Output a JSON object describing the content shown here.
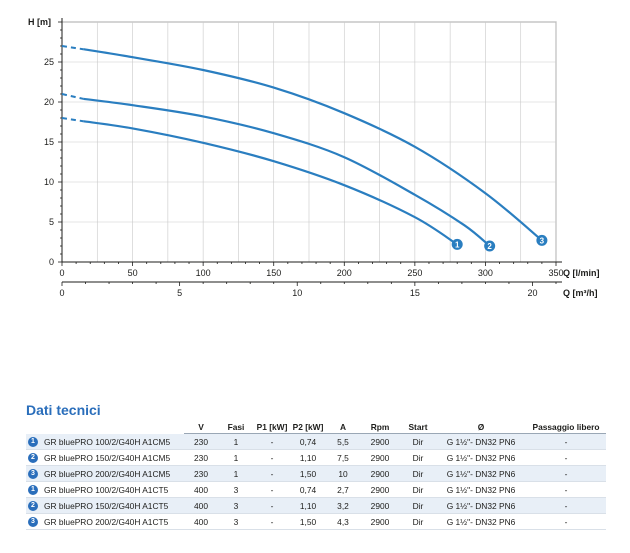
{
  "chart_data": {
    "type": "line",
    "ylabel": "H [m]",
    "xlabel": "Q [l/min]",
    "xlabel_secondary": "Q [m³/h]",
    "xlim": [
      0,
      350
    ],
    "ylim": [
      0,
      30
    ],
    "x_ticks": [
      0,
      50,
      100,
      150,
      200,
      250,
      300,
      350
    ],
    "y_ticks": [
      0,
      5,
      10,
      15,
      20,
      25
    ],
    "x2_ticks": [
      0,
      5,
      10,
      15,
      20
    ],
    "grid": true,
    "color": "#2a7ec0",
    "series": [
      {
        "name": "1",
        "x": [
          0,
          15,
          50,
          100,
          150,
          200,
          250,
          280
        ],
        "y": [
          18,
          17.6,
          16.7,
          14.9,
          12.6,
          9.6,
          5.6,
          2.2
        ]
      },
      {
        "name": "2",
        "x": [
          0,
          15,
          50,
          100,
          150,
          200,
          250,
          285,
          303
        ],
        "y": [
          21,
          20.4,
          19.6,
          18.2,
          16.1,
          13.1,
          8.4,
          4.6,
          2
        ]
      },
      {
        "name": "3",
        "x": [
          0,
          15,
          50,
          100,
          150,
          200,
          250,
          300,
          340
        ],
        "y": [
          27,
          26.6,
          25.6,
          24,
          21.8,
          18.6,
          14.4,
          8.6,
          2.7
        ]
      }
    ]
  },
  "table": {
    "title": "Dati tecnici",
    "headers": [
      "V",
      "Fasi",
      "P1 [kW]",
      "P2 [kW]",
      "A",
      "Rpm",
      "Start",
      "Ø",
      "Passaggio libero"
    ],
    "rows": [
      {
        "badge": "1",
        "model": "GR bluePRO 100/2/G40H A1CM5",
        "v": "230",
        "fasi": "1",
        "p1": "-",
        "p2": "0,74",
        "a": "5,5",
        "rpm": "2900",
        "start": "Dir",
        "conn": "G 1½\"- DN32 PN6",
        "pass": "-"
      },
      {
        "badge": "2",
        "model": "GR bluePRO 150/2/G40H A1CM5",
        "v": "230",
        "fasi": "1",
        "p1": "-",
        "p2": "1,10",
        "a": "7,5",
        "rpm": "2900",
        "start": "Dir",
        "conn": "G 1½\"- DN32 PN6",
        "pass": "-"
      },
      {
        "badge": "3",
        "model": "GR bluePRO 200/2/G40H A1CM5",
        "v": "230",
        "fasi": "1",
        "p1": "-",
        "p2": "1,50",
        "a": "10",
        "rpm": "2900",
        "start": "Dir",
        "conn": "G 1½\"- DN32 PN6",
        "pass": "-"
      },
      {
        "badge": "1",
        "model": "GR bluePRO 100/2/G40H A1CT5",
        "v": "400",
        "fasi": "3",
        "p1": "-",
        "p2": "0,74",
        "a": "2,7",
        "rpm": "2900",
        "start": "Dir",
        "conn": "G 1½\"- DN32 PN6",
        "pass": "-"
      },
      {
        "badge": "2",
        "model": "GR bluePRO 150/2/G40H A1CT5",
        "v": "400",
        "fasi": "3",
        "p1": "-",
        "p2": "1,10",
        "a": "3,2",
        "rpm": "2900",
        "start": "Dir",
        "conn": "G 1½\"- DN32 PN6",
        "pass": "-"
      },
      {
        "badge": "3",
        "model": "GR bluePRO 200/2/G40H A1CT5",
        "v": "400",
        "fasi": "3",
        "p1": "-",
        "p2": "1,50",
        "a": "4,3",
        "rpm": "2900",
        "start": "Dir",
        "conn": "G 1½\"- DN32 PN6",
        "pass": "-"
      }
    ]
  }
}
